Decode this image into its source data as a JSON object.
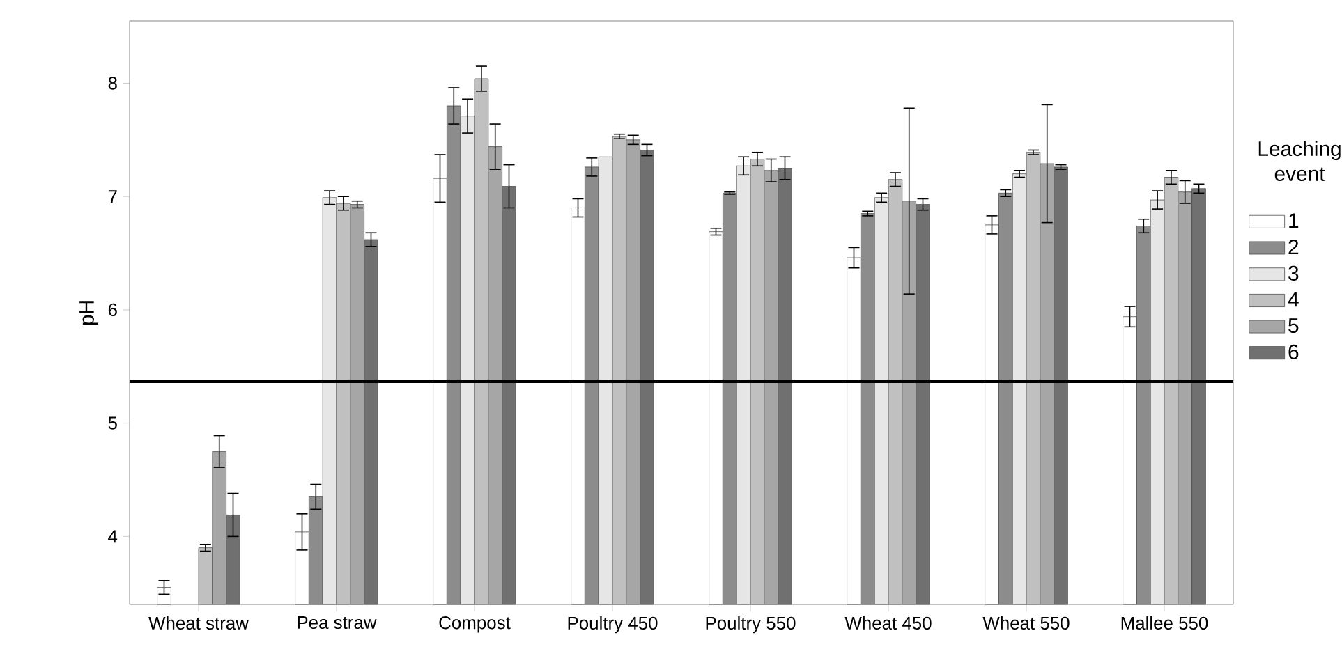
{
  "chart_data": {
    "type": "bar",
    "ylabel": "pH",
    "legend_title": "Leaching event",
    "categories": [
      "Wheat straw",
      "Pea straw",
      "Compost",
      "Poultry 450",
      "Poultry 550",
      "Wheat 450",
      "Wheat 550",
      "Mallee 550"
    ],
    "series": [
      {
        "name": "1",
        "color": "#ffffff",
        "values": [
          3.55,
          4.04,
          7.16,
          6.9,
          6.69,
          6.46,
          6.75,
          5.94
        ],
        "errors": [
          0.06,
          0.16,
          0.21,
          0.08,
          0.03,
          0.09,
          0.08,
          0.09
        ]
      },
      {
        "name": "2",
        "color": "#8c8c8c",
        "values": [
          null,
          4.35,
          7.8,
          7.26,
          7.03,
          6.85,
          7.03,
          6.74
        ],
        "errors": [
          null,
          0.11,
          0.16,
          0.08,
          0.01,
          0.02,
          0.03,
          0.06
        ]
      },
      {
        "name": "3",
        "color": "#e6e6e6",
        "values": [
          null,
          6.99,
          7.71,
          7.35,
          7.27,
          6.99,
          7.2,
          6.97
        ],
        "errors": [
          null,
          0.06,
          0.15,
          null,
          0.08,
          0.04,
          0.03,
          0.08
        ]
      },
      {
        "name": "4",
        "color": "#c0c0c0",
        "values": [
          3.9,
          6.94,
          8.04,
          7.53,
          7.33,
          7.15,
          7.39,
          7.17
        ],
        "errors": [
          0.03,
          0.06,
          0.11,
          0.02,
          0.06,
          0.06,
          0.02,
          0.06
        ]
      },
      {
        "name": "5",
        "color": "#a6a6a6",
        "values": [
          4.75,
          6.93,
          7.44,
          7.5,
          7.23,
          6.96,
          7.29,
          7.04
        ],
        "errors": [
          0.14,
          0.03,
          0.2,
          0.04,
          0.1,
          0.82,
          0.52,
          0.1
        ]
      },
      {
        "name": "6",
        "color": "#707070",
        "values": [
          4.19,
          6.62,
          7.09,
          7.41,
          7.25,
          6.93,
          7.26,
          7.07
        ],
        "errors": [
          0.19,
          0.06,
          0.19,
          0.05,
          0.1,
          0.05,
          0.02,
          0.04
        ]
      }
    ],
    "ylim": [
      3.4,
      8.55
    ],
    "yticks": [
      4,
      5,
      6,
      7,
      8
    ],
    "ref_lines": [
      {
        "axis": "y",
        "value": 5.37,
        "color": "#000000"
      }
    ],
    "grid": false,
    "legend": "right"
  }
}
